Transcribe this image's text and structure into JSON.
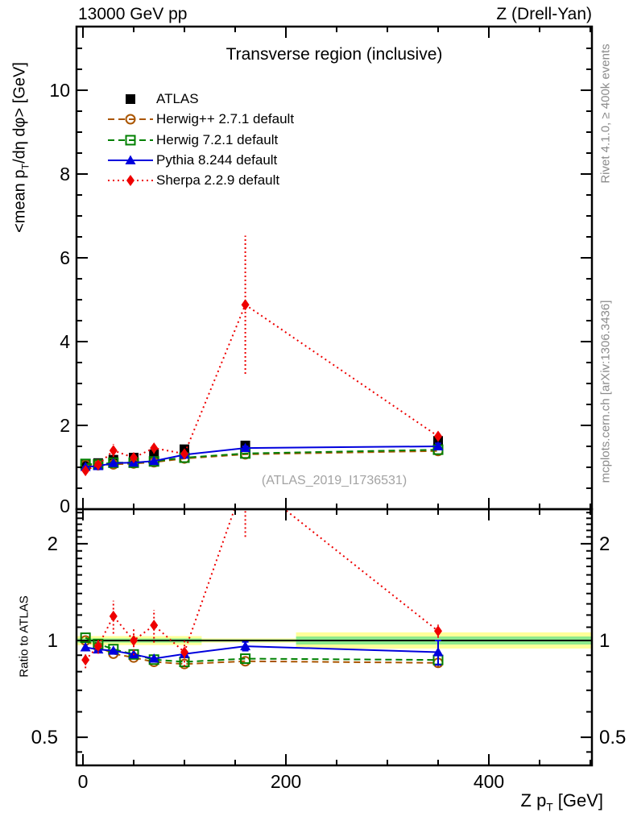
{
  "header": {
    "left": "13000 GeV pp",
    "right": "Z (Drell-Yan)"
  },
  "title": "Transverse region (inclusive)",
  "watermark": "(ATLAS_2019_I1736531)",
  "side_notes": {
    "rivet": "Rivet 4.1.0, ≥ 400k events",
    "mcplots": "mcplots.cern.ch [arXiv:1306.3436]"
  },
  "labels": {
    "y_main": {
      "pre": "<mean p",
      "sub": "T",
      "post": "/dη dφ> [GeV]"
    },
    "y_ratio": "Ratio to ATLAS",
    "x": {
      "pre": "Z p",
      "sub": "T",
      "post": " [GeV]"
    }
  },
  "chart_data": {
    "type": "line",
    "title": "Transverse region (inclusive)",
    "xlabel": "Z pT [GeV]",
    "ylabel_main": "<mean pT/deta dphi> [GeV]",
    "ylabel_ratio": "Ratio to ATLAS",
    "x": [
      2.5,
      15,
      30,
      50,
      70,
      100,
      160,
      350
    ],
    "x_axis": {
      "range": [
        -6.3,
        501.6
      ],
      "major_ticks": [
        0,
        200,
        400
      ],
      "minor_step": 50
    },
    "y_axis_main": {
      "range": [
        0,
        11.5
      ],
      "major_ticks": [
        2,
        4,
        6,
        8,
        10
      ],
      "minor_step": 0.5,
      "zero_label": "0"
    },
    "y_axis_ratio": {
      "scale": "log",
      "range": [
        0.41,
        2.56
      ],
      "major_ticks": [
        0.5,
        1,
        2
      ],
      "major_tick_labels": [
        "0.5",
        "1",
        "2"
      ],
      "minor_ticks": [
        0.45,
        0.6,
        0.7,
        0.8,
        0.9,
        1.1,
        1.2,
        1.3,
        1.4,
        1.5,
        1.6,
        1.7,
        1.8,
        1.9,
        2.1,
        2.2,
        2.3,
        2.4,
        2.5
      ]
    },
    "series": [
      {
        "id": "atlas",
        "name": "ATLAS",
        "color": "#000000",
        "marker": "square-filled",
        "line": "none",
        "values": [
          1.06,
          1.1,
          1.18,
          1.23,
          1.31,
          1.43,
          1.52,
          1.63
        ]
      },
      {
        "id": "herwigpp",
        "name": "Herwig++ 2.7.1 default",
        "color": "#aa5500",
        "marker": "circle-open",
        "line": "dashed",
        "values": [
          1.06,
          1.05,
          1.07,
          1.09,
          1.12,
          1.21,
          1.31,
          1.39
        ],
        "ratio": [
          1.0,
          0.955,
          0.91,
          0.885,
          0.858,
          0.845,
          0.862,
          0.852
        ],
        "ratio_err": [
          0,
          0,
          0,
          0,
          0,
          0,
          0,
          0.03
        ]
      },
      {
        "id": "herwig7",
        "name": "Herwig 7.2.1 default",
        "color": "#008000",
        "marker": "square-open",
        "line": "dashed",
        "values": [
          1.08,
          1.07,
          1.11,
          1.11,
          1.14,
          1.23,
          1.33,
          1.42
        ],
        "ratio": [
          1.02,
          0.975,
          0.94,
          0.905,
          0.872,
          0.858,
          0.878,
          0.87
        ],
        "ratio_err": [
          0,
          0,
          0,
          0,
          0,
          0,
          0,
          0.03
        ]
      },
      {
        "id": "pythia",
        "name": "Pythia 8.244 default",
        "color": "#0000dd",
        "marker": "triangle-filled",
        "line": "solid",
        "caps": true,
        "values": [
          1.01,
          1.03,
          1.1,
          1.11,
          1.15,
          1.3,
          1.46,
          1.5
        ],
        "value_err": [
          0,
          0,
          0,
          0,
          0,
          0,
          0.04,
          0.07
        ],
        "ratio": [
          0.952,
          0.938,
          0.93,
          0.905,
          0.878,
          0.908,
          0.96,
          0.92
        ],
        "ratio_err": [
          0,
          0,
          0,
          0,
          0,
          0,
          0.03,
          0.08
        ]
      },
      {
        "id": "sherpa",
        "name": "Sherpa 2.2.9 default",
        "color": "#ee0000",
        "marker": "diamond-filled",
        "line": "dotted",
        "values": [
          0.92,
          1.06,
          1.4,
          1.23,
          1.46,
          1.32,
          4.88,
          1.74
        ],
        "value_err": [
          0.06,
          0.05,
          0.15,
          0.1,
          0.13,
          0.1,
          1.65,
          0.1
        ],
        "ratio": [
          0.87,
          0.96,
          1.19,
          1.0,
          1.115,
          0.92,
          3.2,
          1.07
        ],
        "ratio_err": [
          0.05,
          0.05,
          0.14,
          0.1,
          0.13,
          0.09,
          1.1,
          0.05
        ]
      }
    ],
    "atlas_band": {
      "yellow_color": "#ffff99",
      "green_color": "#8ce98c",
      "segments": [
        {
          "x0": -6.3,
          "x1": 117,
          "yellow": [
            0.968,
            1.032
          ],
          "green": [
            0.985,
            1.015
          ]
        },
        {
          "x0": 117,
          "x1": 210,
          "yellow": [
            0.985,
            1.015
          ],
          "green": [
            0.992,
            1.008
          ]
        },
        {
          "x0": 210,
          "x1": 501.6,
          "yellow": [
            0.944,
            1.06
          ],
          "green": [
            0.972,
            1.029
          ]
        }
      ]
    },
    "legend_position": "top-left",
    "grid": false
  }
}
